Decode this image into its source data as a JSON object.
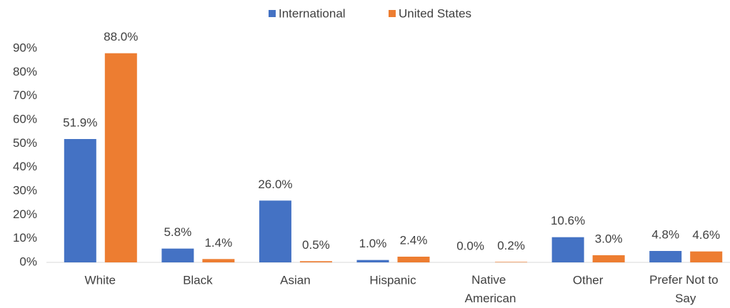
{
  "chart_data": {
    "type": "bar",
    "categories": [
      "White",
      "Black",
      "Asian",
      "Hispanic",
      "Native American",
      "Other",
      "Prefer Not to Say"
    ],
    "series": [
      {
        "name": "International",
        "color": "#4472c4",
        "values": [
          51.9,
          5.8,
          26.0,
          1.0,
          0.0,
          10.6,
          4.8
        ],
        "value_labels": [
          "51.9%",
          "5.8%",
          "26.0%",
          "1.0%",
          "0.0%",
          "10.6%",
          "4.8%"
        ]
      },
      {
        "name": "United States",
        "color": "#ed7d31",
        "values": [
          88.0,
          1.4,
          0.5,
          2.4,
          0.2,
          3.0,
          4.6
        ],
        "value_labels": [
          "88.0%",
          "1.4%",
          "0.5%",
          "2.4%",
          "0.2%",
          "3.0%",
          "4.6%"
        ]
      }
    ],
    "ylim": [
      0,
      90
    ],
    "yticks": [
      {
        "value": 0,
        "label": "0%"
      },
      {
        "value": 10,
        "label": "10%"
      },
      {
        "value": 20,
        "label": "20%"
      },
      {
        "value": 30,
        "label": "30%"
      },
      {
        "value": 40,
        "label": "40%"
      },
      {
        "value": 50,
        "label": "50%"
      },
      {
        "value": 60,
        "label": "60%"
      },
      {
        "value": 70,
        "label": "70%"
      },
      {
        "value": 80,
        "label": "80%"
      },
      {
        "value": 90,
        "label": "90%"
      }
    ],
    "legend": "top",
    "grid": false
  }
}
